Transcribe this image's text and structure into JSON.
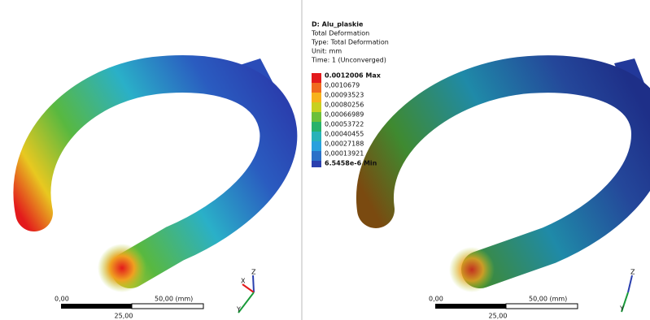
{
  "legend": {
    "title": "D: Alu_plaskie",
    "lines": [
      "Total Deformation",
      "Type: Total Deformation",
      "Unit: mm",
      "Time: 1 (Unconverged)"
    ],
    "labels": [
      "0.0012006 Max",
      "0,0010679",
      "0,00093523",
      "0,00080256",
      "0,00066989",
      "0,00053722",
      "0,00040455",
      "0,00027188",
      "0,00013921",
      "6.5458e-6 Min"
    ]
  },
  "views": [
    {
      "scale": {
        "start": "0,00",
        "end": "50,00 (mm)",
        "mid": "25,00"
      },
      "triad": [
        "Z",
        "X",
        "Y"
      ]
    },
    {
      "scale": {
        "start": "0,00",
        "end": "50,00 (mm)",
        "mid": "25,00"
      },
      "triad": [
        "Z",
        "Y"
      ]
    }
  ]
}
